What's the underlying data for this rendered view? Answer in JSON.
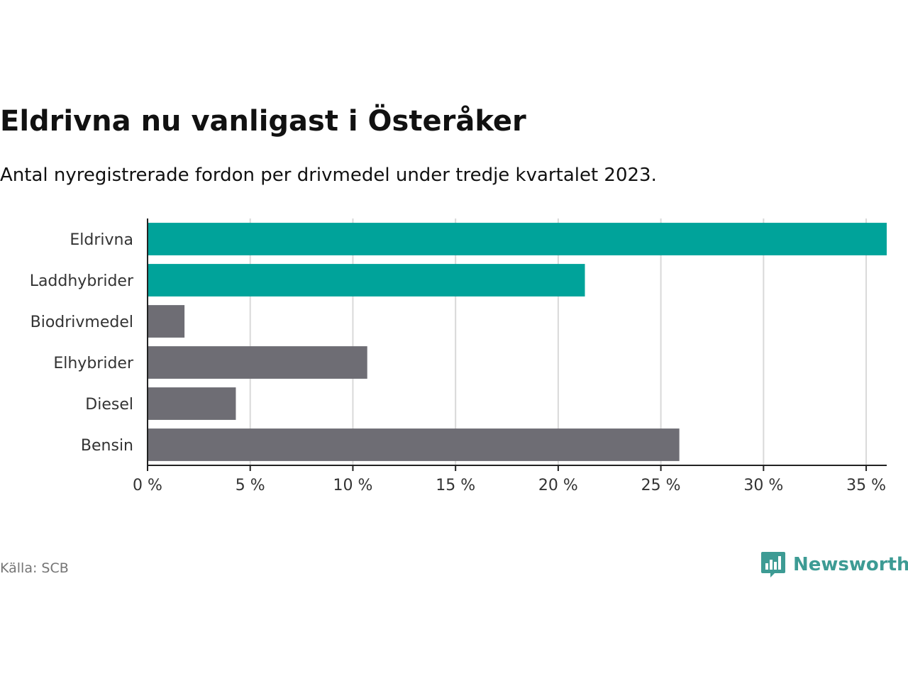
{
  "header": {
    "title": "Eldrivna nu vanligast i Österåker",
    "subtitle": "Antal nyregistrerade fordon per drivmedel under tredje kvartalet 2023."
  },
  "footer": {
    "source": "Källa: SCB",
    "brand": "Newsworthy"
  },
  "colors": {
    "highlight": "#00a39a",
    "default": "#6e6d74",
    "grid": "#d9d9d9",
    "axis": "#222222",
    "brand": "#3d9b94"
  },
  "chart_data": {
    "type": "bar",
    "orientation": "horizontal",
    "title": "Eldrivna nu vanligast i Österåker",
    "subtitle": "Antal nyregistrerade fordon per drivmedel under tredje kvartalet 2023.",
    "xlabel": "",
    "ylabel": "",
    "xlim": [
      0,
      36
    ],
    "grid": true,
    "unit": "%",
    "categories": [
      "Eldrivna",
      "Laddhybrider",
      "Biodrivmedel",
      "Elhybrider",
      "Diesel",
      "Bensin"
    ],
    "values": [
      36.0,
      21.3,
      1.8,
      10.7,
      4.3,
      25.9
    ],
    "highlight": [
      true,
      true,
      false,
      false,
      false,
      false
    ],
    "ticks": [
      0,
      5,
      10,
      15,
      20,
      25,
      30,
      35
    ],
    "tick_labels": [
      "0 %",
      "5 %",
      "10 %",
      "15 %",
      "20 %",
      "25 %",
      "30 %",
      "35 %"
    ]
  }
}
